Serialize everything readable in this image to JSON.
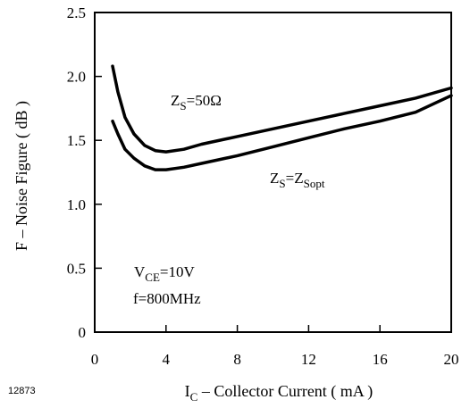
{
  "chart_data": {
    "type": "line",
    "figure_id": "12873",
    "xlabel": {
      "main": "I",
      "sub": "C",
      "rest": " – Collector Current ( mA )"
    },
    "ylabel": "F  –  Noise Figure  ( dB )",
    "xlim": [
      0,
      20
    ],
    "ylim": [
      0,
      2.5
    ],
    "x_ticks": [
      0,
      4,
      8,
      12,
      16,
      20
    ],
    "x_tick_labels": [
      "0",
      "4",
      "8",
      "12",
      "16",
      "20"
    ],
    "y_ticks": [
      0,
      0.5,
      1.0,
      1.5,
      2.0,
      2.5
    ],
    "y_tick_labels": [
      "0",
      "0.5",
      "1.0",
      "1.5",
      "2.0",
      "2.5"
    ],
    "grid": false,
    "series": [
      {
        "name": "ZS=50Ω",
        "label": {
          "a": "Z",
          "a_sub": "S",
          "b": "=50Ω"
        },
        "x": [
          1,
          1.3,
          1.7,
          2.2,
          2.8,
          3.4,
          4,
          5,
          6,
          8,
          10,
          12,
          14,
          16,
          18,
          20
        ],
        "y": [
          2.08,
          1.88,
          1.68,
          1.55,
          1.46,
          1.42,
          1.41,
          1.43,
          1.47,
          1.53,
          1.59,
          1.65,
          1.71,
          1.77,
          1.83,
          1.91
        ]
      },
      {
        "name": "ZS=ZSopt",
        "label": {
          "a": "Z",
          "a_sub": "S",
          "b": "=Z",
          "b_sub": "Sopt"
        },
        "x": [
          1,
          1.3,
          1.7,
          2.2,
          2.8,
          3.4,
          4,
          5,
          6,
          8,
          10,
          12,
          14,
          16,
          18,
          20
        ],
        "y": [
          1.65,
          1.55,
          1.43,
          1.36,
          1.3,
          1.27,
          1.27,
          1.29,
          1.32,
          1.38,
          1.45,
          1.52,
          1.59,
          1.65,
          1.72,
          1.85
        ]
      }
    ],
    "conditions": {
      "line1_a": "V",
      "line1_sub": "CE",
      "line1_b": "=10V",
      "line2": "f=800MHz"
    }
  }
}
